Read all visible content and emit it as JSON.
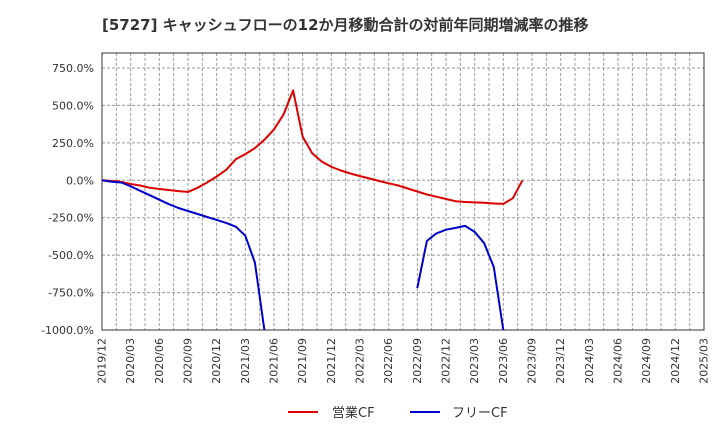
{
  "chart_data": {
    "type": "line",
    "title": "[5727]  キャッシュフローの12か月移動合計の対前年同期増減率の推移",
    "xlabel": "",
    "ylabel": "",
    "ylim": [
      -1000,
      850
    ],
    "y_ticks": [
      750,
      500,
      250,
      0,
      -250,
      -500,
      -750,
      -1000
    ],
    "y_tick_labels": [
      "750.0%",
      "500.0%",
      "250.0%",
      "0.0%",
      "-250.0%",
      "-500.0%",
      "-750.0%",
      "-1000.0%"
    ],
    "x_tick_labels": [
      "2019/12",
      "2020/03",
      "2020/06",
      "2020/09",
      "2020/12",
      "2021/03",
      "2021/06",
      "2021/09",
      "2021/12",
      "2022/03",
      "2022/06",
      "2022/09",
      "2022/12",
      "2023/03",
      "2023/06",
      "2023/09",
      "2023/12",
      "2024/03",
      "2024/06",
      "2024/09",
      "2024/12",
      "2025/03"
    ],
    "grid": true,
    "legend_position": "bottom-center",
    "series": [
      {
        "name": "営業CF",
        "color": "#dd0000",
        "points": [
          [
            0,
            0
          ],
          [
            1,
            -5
          ],
          [
            2,
            -10
          ],
          [
            3,
            -25
          ],
          [
            4,
            -35
          ],
          [
            5,
            -50
          ],
          [
            6,
            -58
          ],
          [
            7,
            -65
          ],
          [
            8,
            -72
          ],
          [
            9,
            -78
          ],
          [
            10,
            -50
          ],
          [
            11,
            -15
          ],
          [
            12,
            25
          ],
          [
            13,
            70
          ],
          [
            14,
            140
          ],
          [
            15,
            175
          ],
          [
            16,
            215
          ],
          [
            17,
            270
          ],
          [
            18,
            340
          ],
          [
            19,
            440
          ],
          [
            20,
            600
          ],
          [
            21,
            290
          ],
          [
            22,
            180
          ],
          [
            23,
            125
          ],
          [
            24,
            90
          ],
          [
            25,
            65
          ],
          [
            26,
            45
          ],
          [
            27,
            28
          ],
          [
            28,
            12
          ],
          [
            29,
            -5
          ],
          [
            30,
            -20
          ],
          [
            31,
            -35
          ],
          [
            32,
            -55
          ],
          [
            33,
            -75
          ],
          [
            34,
            -95
          ],
          [
            35,
            -110
          ],
          [
            36,
            -125
          ],
          [
            37,
            -140
          ],
          [
            38,
            -145
          ],
          [
            39,
            -148
          ],
          [
            40,
            -150
          ],
          [
            41,
            -155
          ],
          [
            42,
            -158
          ],
          [
            43,
            -120
          ],
          [
            44,
            0
          ]
        ]
      },
      {
        "name": "フリーCF",
        "color": "#0000cc",
        "segments": [
          [
            [
              0,
              0
            ],
            [
              1,
              -10
            ],
            [
              2,
              -15
            ],
            [
              3,
              -40
            ],
            [
              4,
              -70
            ],
            [
              5,
              -100
            ],
            [
              6,
              -130
            ],
            [
              7,
              -160
            ],
            [
              8,
              -185
            ],
            [
              9,
              -205
            ],
            [
              10,
              -225
            ],
            [
              11,
              -245
            ],
            [
              12,
              -265
            ],
            [
              13,
              -285
            ],
            [
              14,
              -310
            ],
            [
              15,
              -370
            ],
            [
              16,
              -550
            ],
            [
              17,
              -1000
            ]
          ],
          [
            [
              33,
              -720
            ],
            [
              34,
              -405
            ],
            [
              35,
              -355
            ],
            [
              36,
              -330
            ],
            [
              37,
              -318
            ],
            [
              38,
              -305
            ],
            [
              39,
              -345
            ],
            [
              40,
              -420
            ],
            [
              41,
              -580
            ],
            [
              42,
              -1000
            ]
          ]
        ]
      }
    ]
  }
}
